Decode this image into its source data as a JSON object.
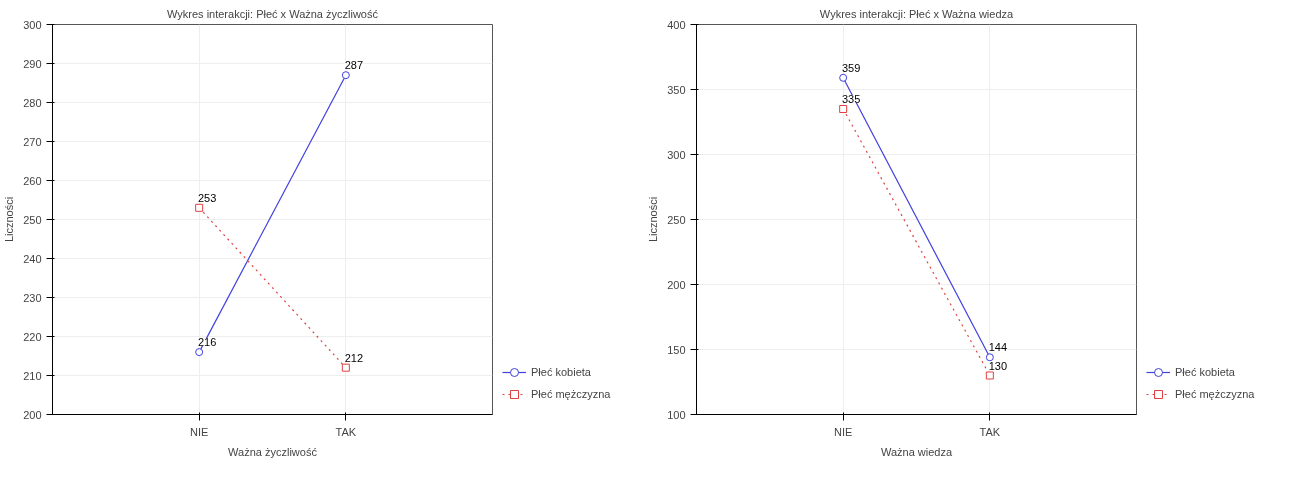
{
  "chart_data": [
    {
      "type": "line",
      "title": "Wykres interakcji: Płeć x Ważna życzliwość",
      "xlabel": "Ważna życzliwość",
      "ylabel": "Liczności",
      "categories": [
        "NIE",
        "TAK"
      ],
      "ylim": [
        200,
        300
      ],
      "yticks": [
        200,
        210,
        220,
        230,
        240,
        250,
        260,
        270,
        280,
        290,
        300
      ],
      "grid": true,
      "legend": "bottom right",
      "data_labels": true,
      "series": [
        {
          "name": "Płeć kobieta",
          "color": "#4040e0",
          "values": [
            216,
            287
          ],
          "marker": "circle",
          "line_style": "solid"
        },
        {
          "name": "Płeć mężczyzna",
          "color": "#e04040",
          "values": [
            253,
            212
          ],
          "marker": "square",
          "line_style": "dotted"
        }
      ]
    },
    {
      "type": "line",
      "title": "Wykres interakcji: Płeć x Ważna wiedza",
      "xlabel": "Ważna wiedza",
      "ylabel": "Liczności",
      "categories": [
        "NIE",
        "TAK"
      ],
      "ylim": [
        100,
        400
      ],
      "yticks": [
        100,
        150,
        200,
        250,
        300,
        350,
        400
      ],
      "grid": true,
      "legend": "bottom right",
      "data_labels": true,
      "series": [
        {
          "name": "Płeć kobieta",
          "color": "#4040e0",
          "values": [
            359,
            144
          ],
          "marker": "circle",
          "line_style": "solid"
        },
        {
          "name": "Płeć mężczyzna",
          "color": "#e04040",
          "values": [
            335,
            130
          ],
          "marker": "square",
          "line_style": "dotted"
        }
      ]
    }
  ]
}
